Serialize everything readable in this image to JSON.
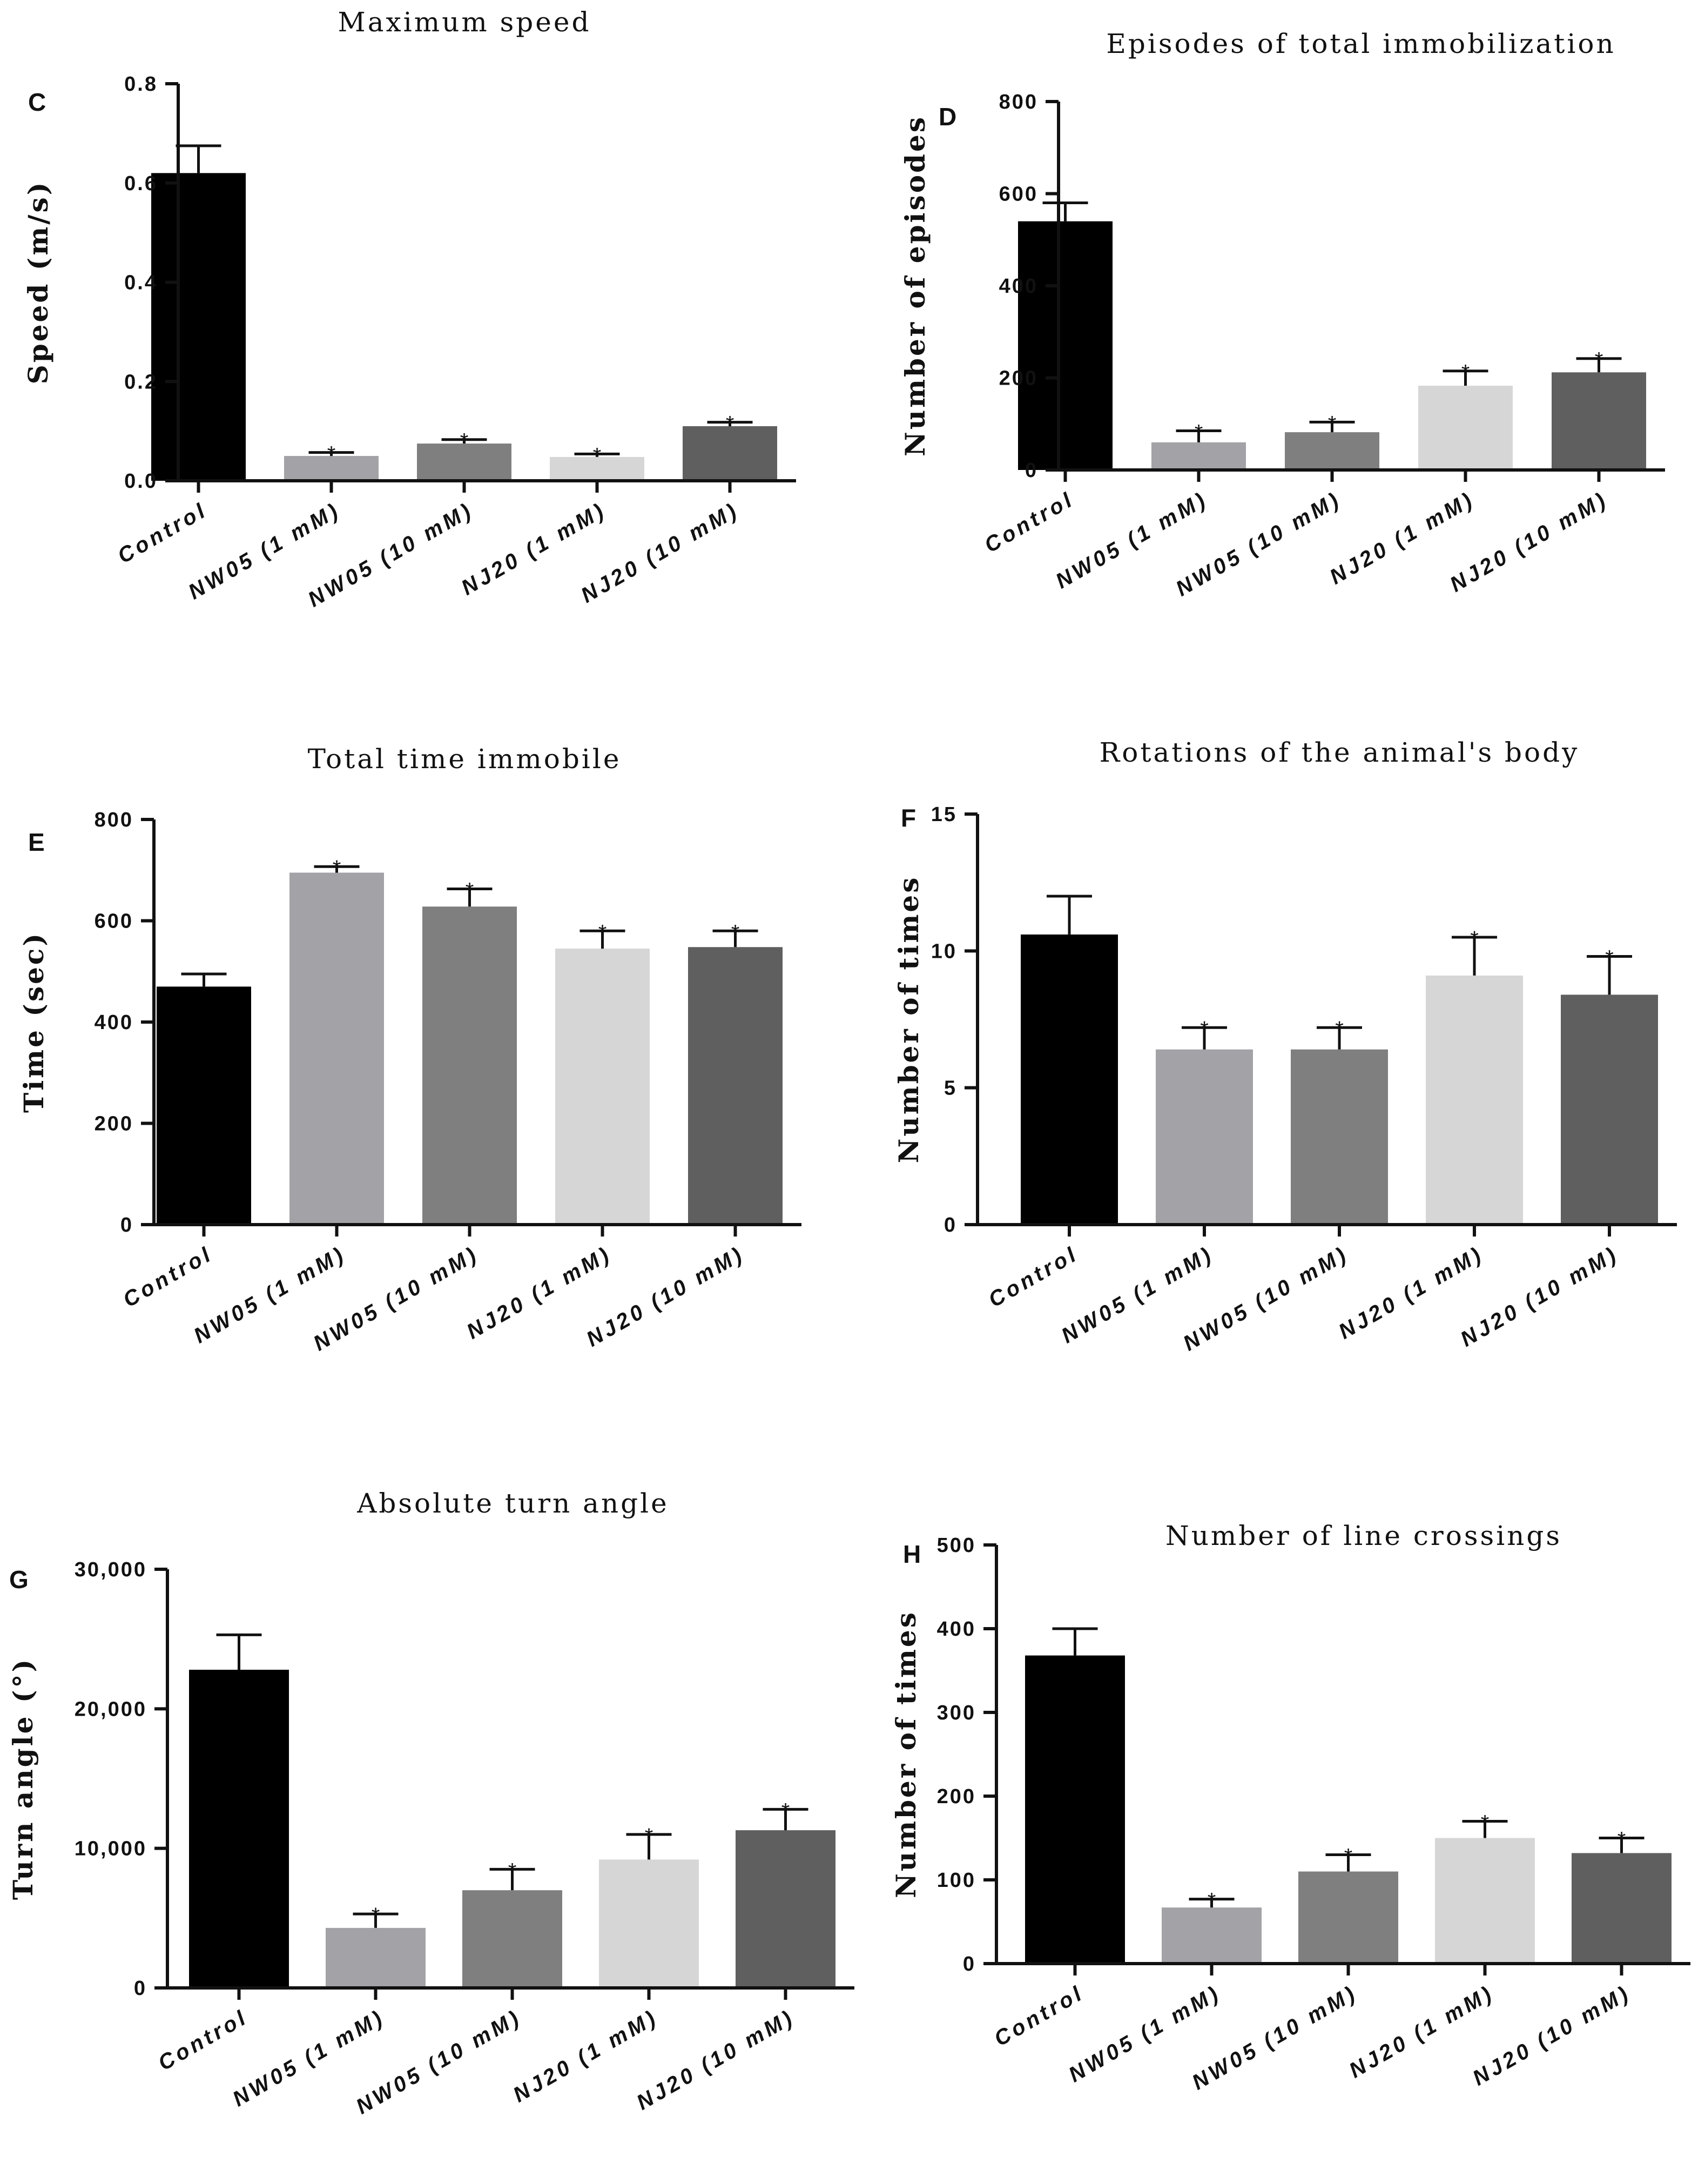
{
  "chart_data": [
    {
      "type": "bar",
      "panel": "C",
      "title": "Maximum speed",
      "ylabel": "Speed (m/s)",
      "xlabel": "",
      "categories": [
        "Control",
        "NW05 (1 mM)",
        "NW05 (10 mM)",
        "NJ20 (1 mM)",
        "NJ20 (10 mM)"
      ],
      "values": [
        0.62,
        0.05,
        0.075,
        0.048,
        0.11
      ],
      "errors": [
        0.055,
        0.007,
        0.008,
        0.006,
        0.008
      ],
      "significance": [
        "",
        "*",
        "*",
        "*",
        "*"
      ],
      "ylim": [
        0,
        0.8
      ],
      "yticks": [
        0,
        0.2,
        0.4,
        0.6,
        0.8
      ],
      "ytick_labels": [
        "0.0",
        "0.2",
        "0.4",
        "0.6",
        "0.8"
      ]
    },
    {
      "type": "bar",
      "panel": "D",
      "title": "Episodes of total immobilization",
      "ylabel": "Number of episodes",
      "xlabel": "",
      "categories": [
        "Control",
        "NW05 (1 mM)",
        "NW05 (10 mM)",
        "NJ20 (1 mM)",
        "NJ20 (10 mM)"
      ],
      "values": [
        540,
        60,
        82,
        183,
        212
      ],
      "errors": [
        40,
        25,
        22,
        32,
        30
      ],
      "significance": [
        "",
        "*",
        "*",
        "*",
        "*"
      ],
      "ylim": [
        0,
        800
      ],
      "yticks": [
        0,
        200,
        400,
        600,
        800
      ],
      "ytick_labels": [
        "0",
        "200",
        "400",
        "600",
        "800"
      ]
    },
    {
      "type": "bar",
      "panel": "E",
      "title": "Total time immobile",
      "ylabel": "Time (sec)",
      "xlabel": "",
      "categories": [
        "Control",
        "NW05 (1 mM)",
        "NW05 (10 mM)",
        "NJ20 (1 mM)",
        "NJ20 (10 mM)"
      ],
      "values": [
        470,
        695,
        628,
        545,
        548
      ],
      "errors": [
        25,
        12,
        35,
        35,
        32
      ],
      "significance": [
        "",
        "*",
        "*",
        "*",
        "*"
      ],
      "ylim": [
        0,
        800
      ],
      "yticks": [
        0,
        200,
        400,
        600,
        800
      ],
      "ytick_labels": [
        "0",
        "200",
        "400",
        "600",
        "800"
      ]
    },
    {
      "type": "bar",
      "panel": "F",
      "title": "Rotations of the animal's body",
      "ylabel": "Number of times",
      "xlabel": "",
      "categories": [
        "Control",
        "NW05 (1 mM)",
        "NW05 (10 mM)",
        "NJ20 (1 mM)",
        "NJ20 (10 mM)"
      ],
      "values": [
        10.6,
        6.4,
        6.4,
        9.1,
        8.4
      ],
      "errors": [
        1.4,
        0.8,
        0.8,
        1.4,
        1.4
      ],
      "significance": [
        "",
        "*",
        "*",
        "*",
        "*"
      ],
      "ylim": [
        0,
        15
      ],
      "yticks": [
        0,
        5,
        10,
        15
      ],
      "ytick_labels": [
        "0",
        "5",
        "10",
        "15"
      ]
    },
    {
      "type": "bar",
      "panel": "G",
      "title": "Absolute turn angle",
      "ylabel": "Turn angle (°)",
      "xlabel": "",
      "categories": [
        "Control",
        "NW05 (1 mM)",
        "NW05 (10 mM)",
        "NJ20 (1 mM)",
        "NJ20 (10 mM)"
      ],
      "values": [
        22800,
        4300,
        7000,
        9200,
        11300
      ],
      "errors": [
        2500,
        1000,
        1500,
        1800,
        1500
      ],
      "significance": [
        "",
        "*",
        "*",
        "*",
        "*"
      ],
      "ylim": [
        0,
        30000
      ],
      "yticks": [
        0,
        10000,
        20000,
        30000
      ],
      "ytick_labels": [
        "0",
        "10,000",
        "20,000",
        "30,000"
      ]
    },
    {
      "type": "bar",
      "panel": "H",
      "title": "Number of line crossings",
      "ylabel": "Number of times",
      "xlabel": "",
      "categories": [
        "Control",
        "NW05 (1 mM)",
        "NW05 (10 mM)",
        "NJ20 (1 mM)",
        "NJ20 (10 mM)"
      ],
      "values": [
        368,
        67,
        110,
        150,
        132
      ],
      "errors": [
        32,
        10,
        20,
        20,
        18
      ],
      "significance": [
        "",
        "*",
        "*",
        "*",
        "*"
      ],
      "ylim": [
        0,
        500
      ],
      "yticks": [
        0,
        100,
        200,
        300,
        400,
        500
      ],
      "ytick_labels": [
        "0",
        "100",
        "200",
        "300",
        "400",
        "500"
      ]
    }
  ],
  "colors": {
    "Control": "#000000",
    "NW05 (1 mM)": "#a2a2a7",
    "NW05 (10 mM)": "#7f7f7f",
    "NJ20 (1 mM)": "#d6d6d6",
    "NJ20 (10 mM)": "#5f5f5f"
  }
}
